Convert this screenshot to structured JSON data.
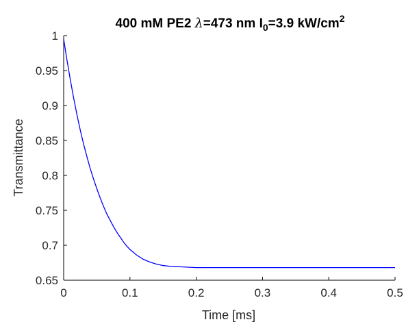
{
  "chart_data": {
    "type": "line",
    "title": {
      "part1": "400 mM PE2 ",
      "lambda": "λ",
      "part2": "=473 nm I",
      "sub": "0",
      "part3": "=3.9 kW/cm",
      "sup": "2"
    },
    "xlabel": "Time [ms]",
    "ylabel": "Transmittance",
    "xlim": [
      0,
      0.5
    ],
    "ylim": [
      0.65,
      1
    ],
    "xticks": [
      0,
      0.1,
      0.2,
      0.3,
      0.4,
      0.5
    ],
    "xtick_labels": [
      "0",
      "0.1",
      "0.2",
      "0.3",
      "0.4",
      "0.5"
    ],
    "yticks": [
      0.65,
      0.7,
      0.75,
      0.8,
      0.85,
      0.9,
      0.95,
      1
    ],
    "ytick_labels": [
      "0.65",
      "0.7",
      "0.75",
      "0.8",
      "0.85",
      "0.9",
      "0.95",
      "1"
    ],
    "grid": false,
    "series": [
      {
        "color": "#0000ff",
        "x": [
          0,
          0.005,
          0.01,
          0.015,
          0.02,
          0.025,
          0.03,
          0.035,
          0.04,
          0.045,
          0.05,
          0.055,
          0.06,
          0.065,
          0.07,
          0.075,
          0.08,
          0.085,
          0.09,
          0.095,
          0.1,
          0.11,
          0.12,
          0.13,
          0.14,
          0.15,
          0.16,
          0.18,
          0.2,
          0.22,
          0.25,
          0.3,
          0.35,
          0.4,
          0.45,
          0.5
        ],
        "y": [
          0.995,
          0.965,
          0.937,
          0.911,
          0.887,
          0.865,
          0.845,
          0.827,
          0.81,
          0.795,
          0.781,
          0.768,
          0.756,
          0.745,
          0.736,
          0.727,
          0.719,
          0.712,
          0.705,
          0.699,
          0.694,
          0.686,
          0.68,
          0.676,
          0.673,
          0.671,
          0.67,
          0.669,
          0.668,
          0.668,
          0.668,
          0.668,
          0.668,
          0.668,
          0.668,
          0.668
        ]
      }
    ]
  }
}
